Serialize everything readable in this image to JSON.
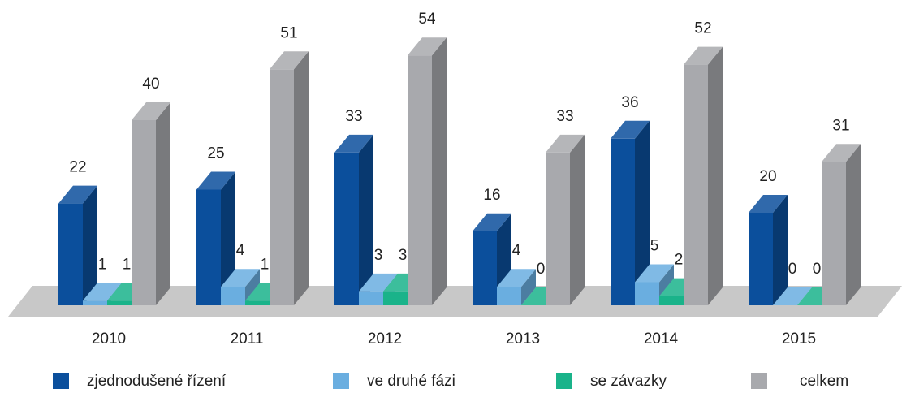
{
  "chart_data": {
    "type": "bar3d",
    "categories": [
      "2010",
      "2011",
      "2012",
      "2013",
      "2014",
      "2015"
    ],
    "series": [
      {
        "name": "zjednodušené řízení",
        "color": "#0b4f9c",
        "values": [
          22,
          25,
          33,
          16,
          36,
          20
        ]
      },
      {
        "name": "ve druhé fázi",
        "color": "#6aaee0",
        "values": [
          1,
          4,
          3,
          4,
          5,
          0
        ]
      },
      {
        "name": "se závazky",
        "color": "#1ab38a",
        "values": [
          1,
          1,
          3,
          0,
          2,
          0
        ]
      },
      {
        "name": "celkem",
        "color": "#a8a9ad",
        "values": [
          40,
          51,
          54,
          33,
          52,
          31
        ]
      }
    ]
  }
}
